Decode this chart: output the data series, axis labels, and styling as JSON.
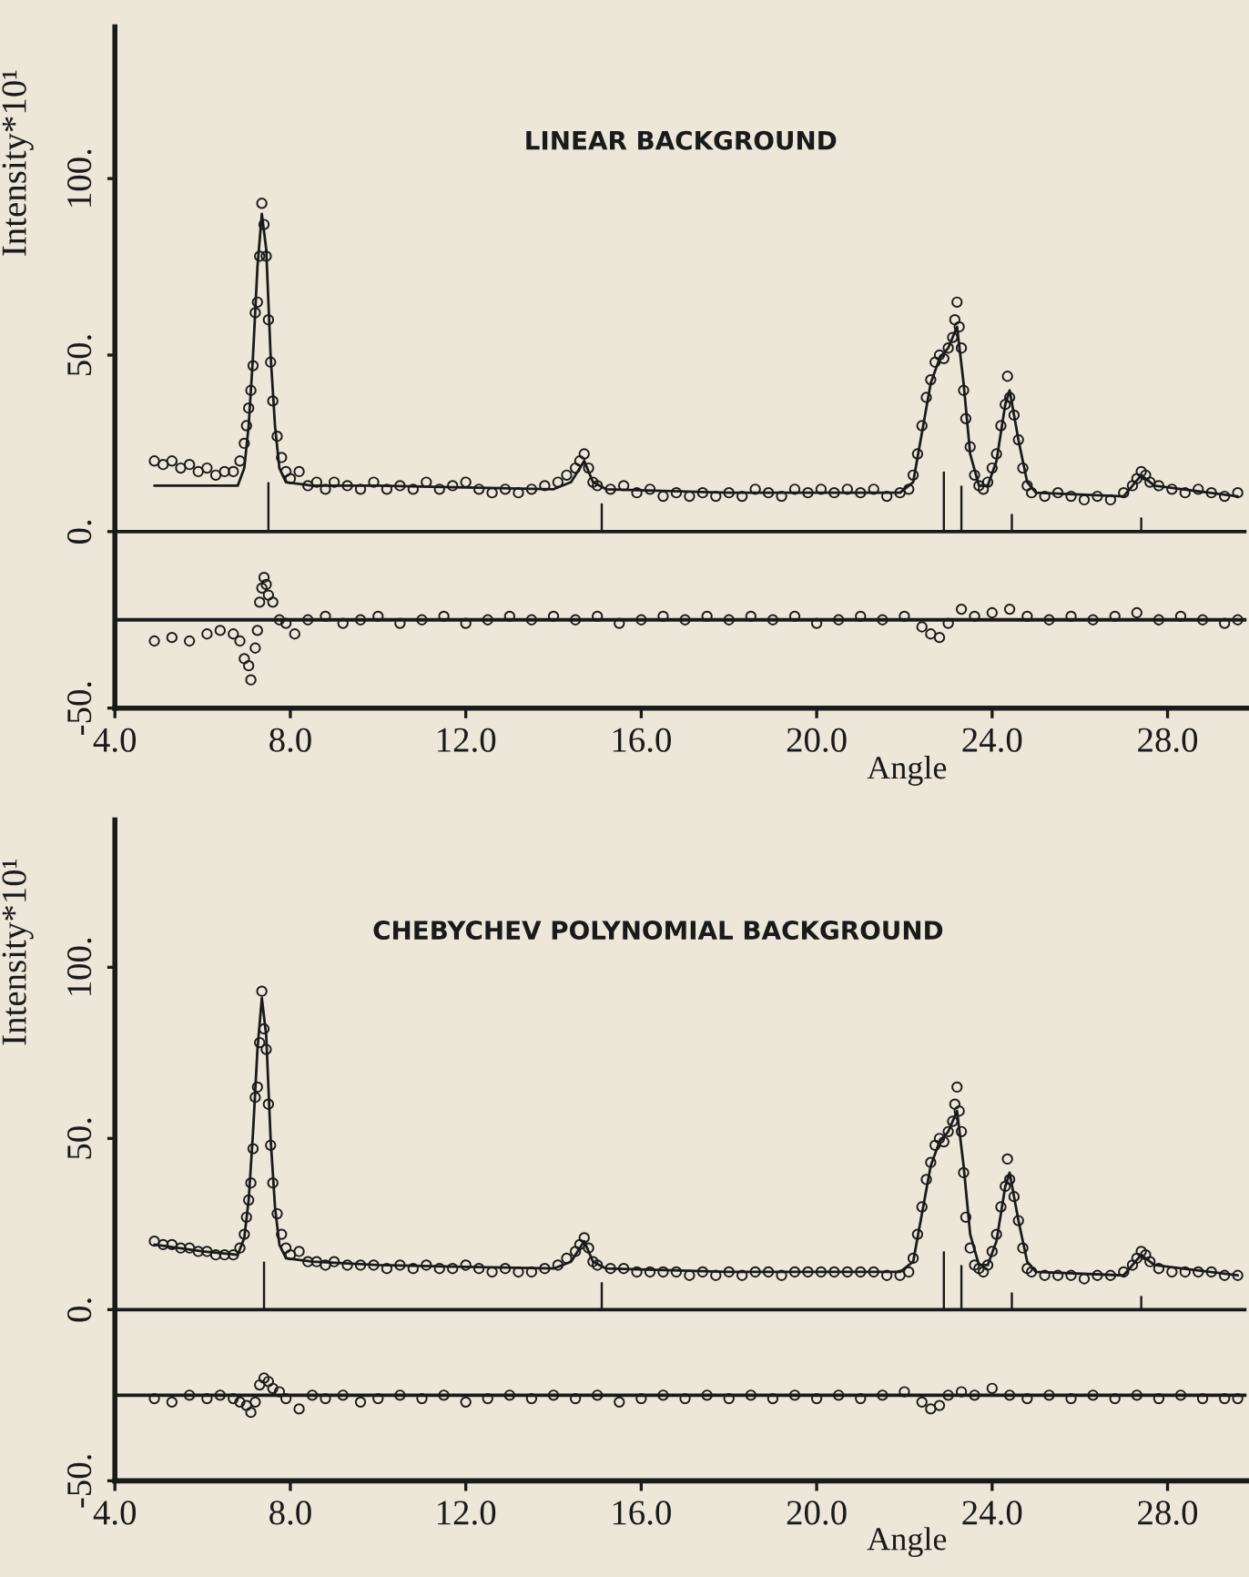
{
  "chart_data": [
    {
      "type": "scatter",
      "annotations": [
        "LINEAR BACKGROUND"
      ],
      "xlabel": "Angle",
      "ylabel": "Intensity*10¹",
      "xlim": [
        4.0,
        29.8
      ],
      "ylim": [
        -50,
        143
      ],
      "xticks": [
        {
          "value": 4,
          "label": "4.0"
        },
        {
          "value": 8,
          "label": "8.0"
        },
        {
          "value": 12,
          "label": "12.0"
        },
        {
          "value": 16,
          "label": "16.0"
        },
        {
          "value": 20,
          "label": "20.0"
        },
        {
          "value": 24,
          "label": "24.0"
        },
        {
          "value": 28,
          "label": "28.0"
        }
      ],
      "yticks": [
        {
          "value": -50,
          "label": "-50."
        },
        {
          "value": 0,
          "label": "0."
        },
        {
          "value": 50,
          "label": "50."
        },
        {
          "value": 100,
          "label": "100."
        }
      ],
      "ref_lines": [
        {
          "axis": "y",
          "value": 0,
          "label": null
        },
        {
          "axis": "y",
          "value": -25,
          "label": null
        }
      ],
      "series": [
        {
          "type": "scatter",
          "marker": "circle",
          "color": "#1a1a1a",
          "x": [
            4.9,
            5.1,
            5.3,
            5.5,
            5.7,
            5.9,
            6.1,
            6.3,
            6.5,
            6.7,
            6.85,
            6.95,
            7.0,
            7.05,
            7.1,
            7.15,
            7.2,
            7.25,
            7.3,
            7.35,
            7.4,
            7.45,
            7.5,
            7.55,
            7.6,
            7.7,
            7.8,
            7.9,
            8.0,
            8.2,
            8.4,
            8.6,
            8.8,
            9.0,
            9.3,
            9.6,
            9.9,
            10.2,
            10.5,
            10.8,
            11.1,
            11.4,
            11.7,
            12.0,
            12.3,
            12.6,
            12.9,
            13.2,
            13.5,
            13.8,
            14.1,
            14.3,
            14.5,
            14.6,
            14.7,
            14.8,
            14.9,
            15.0,
            15.3,
            15.6,
            15.9,
            16.2,
            16.5,
            16.8,
            17.1,
            17.4,
            17.7,
            18.0,
            18.3,
            18.6,
            18.9,
            19.2,
            19.5,
            19.8,
            20.1,
            20.4,
            20.7,
            21.0,
            21.3,
            21.6,
            21.9,
            22.1,
            22.2,
            22.3,
            22.4,
            22.5,
            22.6,
            22.7,
            22.8,
            22.9,
            23.0,
            23.1,
            23.15,
            23.2,
            23.25,
            23.3,
            23.35,
            23.4,
            23.5,
            23.6,
            23.7,
            23.8,
            23.9,
            24.0,
            24.1,
            24.2,
            24.3,
            24.35,
            24.4,
            24.5,
            24.6,
            24.7,
            24.8,
            24.9,
            25.2,
            25.5,
            25.8,
            26.1,
            26.4,
            26.7,
            27.0,
            27.2,
            27.3,
            27.4,
            27.5,
            27.6,
            27.8,
            28.1,
            28.4,
            28.7,
            29.0,
            29.3,
            29.6
          ],
          "values": [
            20,
            19,
            20,
            18,
            19,
            17,
            18,
            16,
            17,
            17,
            20,
            25,
            30,
            35,
            40,
            47,
            62,
            65,
            78,
            93,
            87,
            78,
            60,
            48,
            37,
            27,
            21,
            17,
            15,
            17,
            13,
            14,
            12,
            14,
            13,
            12,
            14,
            12,
            13,
            12,
            14,
            12,
            13,
            14,
            12,
            11,
            12,
            11,
            12,
            13,
            14,
            16,
            18,
            20,
            22,
            18,
            14,
            13,
            12,
            13,
            11,
            12,
            10,
            11,
            10,
            11,
            10,
            11,
            10,
            12,
            11,
            10,
            12,
            11,
            12,
            11,
            12,
            11,
            12,
            10,
            11,
            12,
            16,
            22,
            30,
            38,
            43,
            48,
            50,
            49,
            52,
            55,
            60,
            65,
            58,
            52,
            40,
            32,
            24,
            16,
            13,
            12,
            14,
            18,
            22,
            30,
            36,
            44,
            38,
            33,
            26,
            18,
            13,
            11,
            10,
            11,
            10,
            9,
            10,
            9,
            11,
            13,
            15,
            17,
            16,
            14,
            13,
            12,
            11,
            12,
            11,
            10,
            11
          ]
        },
        {
          "type": "line",
          "color": "#1a1a1a",
          "x": [
            4.9,
            6.8,
            6.95,
            7.05,
            7.15,
            7.25,
            7.35,
            7.45,
            7.55,
            7.65,
            7.75,
            7.9,
            8.5,
            10,
            12,
            14.0,
            14.4,
            14.7,
            14.9,
            15.2,
            18,
            21.9,
            22.2,
            22.4,
            22.6,
            22.8,
            23.0,
            23.2,
            23.35,
            23.5,
            23.7,
            23.9,
            24.1,
            24.3,
            24.4,
            24.6,
            24.8,
            25,
            27.0,
            27.4,
            27.7,
            29.6
          ],
          "values": [
            13,
            13,
            18,
            30,
            50,
            75,
            90,
            80,
            50,
            30,
            18,
            14,
            13,
            13,
            12.5,
            12,
            14,
            20,
            14,
            12,
            11,
            11,
            14,
            28,
            42,
            49,
            52,
            58,
            42,
            22,
            13,
            13,
            20,
            36,
            40,
            26,
            14,
            11,
            10,
            16,
            13,
            10
          ]
        },
        {
          "marker": "circle",
          "color": "#1a1a1a",
          "x": [
            4.9,
            5.3,
            5.7,
            6.1,
            6.4,
            6.7,
            6.85,
            6.95,
            7.05,
            7.1,
            7.2,
            7.25,
            7.3,
            7.35,
            7.4,
            7.45,
            7.5,
            7.6,
            7.75,
            7.9,
            8.1,
            8.4,
            8.8,
            9.2,
            9.6,
            10.0,
            10.5,
            11.0,
            11.5,
            12.0,
            12.5,
            13.0,
            13.5,
            14.0,
            14.5,
            15.0,
            15.5,
            16.0,
            16.5,
            17.0,
            17.5,
            18.0,
            18.5,
            19.0,
            19.5,
            20.0,
            20.5,
            21.0,
            21.5,
            22.0,
            22.4,
            22.6,
            22.8,
            23.0,
            23.3,
            23.6,
            24.0,
            24.4,
            24.8,
            25.3,
            25.8,
            26.3,
            26.8,
            27.3,
            27.8,
            28.3,
            28.8,
            29.3,
            29.6
          ],
          "values": [
            -31,
            -30,
            -31,
            -29,
            -28,
            -29,
            -31,
            -36,
            -38,
            -42,
            -33,
            -28,
            -20,
            -16,
            -13,
            -15,
            -18,
            -20,
            -25,
            -26,
            -29,
            -25,
            -24,
            -26,
            -25,
            -24,
            -26,
            -25,
            -24,
            -26,
            -25,
            -24,
            -25,
            -24,
            -25,
            -24,
            -26,
            -25,
            -24,
            -25,
            -24,
            -25,
            -24,
            -25,
            -24,
            -26,
            -25,
            -24,
            -25,
            -24,
            -27,
            -29,
            -30,
            -26,
            -22,
            -24,
            -23,
            -22,
            -24,
            -25,
            -24,
            -25,
            -24,
            -23,
            -25,
            -24,
            -25,
            -26,
            -25
          ]
        },
        {
          "type": "bar",
          "color": "#1a1a1a",
          "x": [
            7.5,
            15.1,
            22.9,
            23.3,
            24.45,
            27.4
          ],
          "values": [
            14,
            8,
            17,
            13,
            5,
            4
          ]
        }
      ]
    },
    {
      "type": "scatter",
      "annotations": [
        "CHEBYCHEV POLYNOMIAL BACKGROUND"
      ],
      "xlabel": "Angle",
      "ylabel": "Intensity*10¹",
      "xlim": [
        4.0,
        29.8
      ],
      "ylim": [
        -50,
        143
      ],
      "xticks": [
        {
          "value": 4,
          "label": "4.0"
        },
        {
          "value": 8,
          "label": "8.0"
        },
        {
          "value": 12,
          "label": "12.0"
        },
        {
          "value": 16,
          "label": "16.0"
        },
        {
          "value": 20,
          "label": "20.0"
        },
        {
          "value": 24,
          "label": "24.0"
        },
        {
          "value": 28,
          "label": "28.0"
        }
      ],
      "yticks": [
        {
          "value": -50,
          "label": "-50."
        },
        {
          "value": 0,
          "label": "0."
        },
        {
          "value": 50,
          "label": "50."
        },
        {
          "value": 100,
          "label": "100."
        }
      ],
      "ref_lines": [
        {
          "axis": "y",
          "value": 0,
          "label": null
        },
        {
          "axis": "y",
          "value": -25,
          "label": null
        }
      ],
      "series": [
        {
          "type": "scatter",
          "marker": "circle",
          "color": "#1a1a1a",
          "x": [
            4.9,
            5.1,
            5.3,
            5.5,
            5.7,
            5.9,
            6.1,
            6.3,
            6.5,
            6.7,
            6.85,
            6.95,
            7.0,
            7.05,
            7.1,
            7.15,
            7.2,
            7.25,
            7.3,
            7.35,
            7.4,
            7.45,
            7.5,
            7.55,
            7.6,
            7.7,
            7.8,
            7.9,
            8.0,
            8.2,
            8.4,
            8.6,
            8.8,
            9.0,
            9.3,
            9.6,
            9.9,
            10.2,
            10.5,
            10.8,
            11.1,
            11.4,
            11.7,
            12.0,
            12.3,
            12.6,
            12.9,
            13.2,
            13.5,
            13.8,
            14.1,
            14.3,
            14.5,
            14.6,
            14.7,
            14.8,
            14.9,
            15.0,
            15.3,
            15.6,
            15.9,
            16.2,
            16.5,
            16.8,
            17.1,
            17.4,
            17.7,
            18.0,
            18.3,
            18.6,
            18.9,
            19.2,
            19.5,
            19.8,
            20.1,
            20.4,
            20.7,
            21.0,
            21.3,
            21.6,
            21.9,
            22.1,
            22.2,
            22.3,
            22.4,
            22.5,
            22.6,
            22.7,
            22.8,
            22.9,
            23.0,
            23.1,
            23.15,
            23.2,
            23.25,
            23.3,
            23.35,
            23.4,
            23.5,
            23.6,
            23.7,
            23.8,
            23.9,
            24.0,
            24.1,
            24.2,
            24.3,
            24.35,
            24.4,
            24.5,
            24.6,
            24.7,
            24.8,
            24.9,
            25.2,
            25.5,
            25.8,
            26.1,
            26.4,
            26.7,
            27.0,
            27.2,
            27.3,
            27.4,
            27.5,
            27.6,
            27.8,
            28.1,
            28.4,
            28.7,
            29.0,
            29.3,
            29.6
          ],
          "values": [
            20,
            19,
            19,
            18,
            18,
            17,
            17,
            16,
            16,
            16,
            18,
            22,
            27,
            32,
            37,
            47,
            62,
            65,
            78,
            93,
            82,
            76,
            60,
            48,
            37,
            28,
            22,
            18,
            16,
            17,
            14,
            14,
            13,
            14,
            13,
            13,
            13,
            12,
            13,
            12,
            13,
            12,
            12,
            13,
            12,
            11,
            12,
            11,
            11,
            12,
            13,
            15,
            17,
            19,
            21,
            18,
            14,
            13,
            12,
            12,
            11,
            11,
            11,
            11,
            10,
            11,
            10,
            11,
            10,
            11,
            11,
            10,
            11,
            11,
            11,
            11,
            11,
            11,
            11,
            10,
            10,
            11,
            15,
            22,
            30,
            38,
            43,
            48,
            50,
            49,
            52,
            55,
            60,
            65,
            58,
            52,
            40,
            27,
            18,
            13,
            12,
            11,
            13,
            17,
            22,
            30,
            36,
            44,
            38,
            33,
            26,
            18,
            12,
            11,
            10,
            10,
            10,
            9,
            10,
            10,
            11,
            13,
            15,
            17,
            16,
            14,
            12,
            11,
            11,
            11,
            11,
            10,
            10
          ]
        },
        {
          "type": "line",
          "color": "#1a1a1a",
          "x": [
            4.9,
            6.0,
            6.8,
            6.95,
            7.05,
            7.15,
            7.25,
            7.35,
            7.45,
            7.55,
            7.65,
            7.75,
            7.9,
            8.5,
            10,
            12,
            14.0,
            14.4,
            14.7,
            14.9,
            15.2,
            18,
            21.9,
            22.2,
            22.4,
            22.6,
            22.8,
            23.0,
            23.2,
            23.35,
            23.5,
            23.7,
            23.9,
            24.1,
            24.3,
            24.4,
            24.6,
            24.8,
            25,
            27.0,
            27.4,
            27.7,
            29.6
          ],
          "values": [
            19,
            17,
            16,
            21,
            32,
            52,
            76,
            91,
            80,
            50,
            30,
            19,
            15,
            14,
            13,
            12.5,
            12,
            14,
            20,
            14,
            12,
            11,
            11,
            14,
            28,
            42,
            49,
            52,
            58,
            42,
            22,
            13,
            13,
            20,
            36,
            40,
            26,
            14,
            11,
            10,
            16,
            13,
            10
          ]
        },
        {
          "marker": "circle",
          "color": "#1a1a1a",
          "x": [
            4.9,
            5.3,
            5.7,
            6.1,
            6.4,
            6.7,
            6.85,
            7.0,
            7.1,
            7.2,
            7.3,
            7.4,
            7.5,
            7.6,
            7.75,
            7.9,
            8.2,
            8.5,
            8.8,
            9.2,
            9.6,
            10.0,
            10.5,
            11.0,
            11.5,
            12.0,
            12.5,
            13.0,
            13.5,
            14.0,
            14.5,
            15.0,
            15.5,
            16.0,
            16.5,
            17.0,
            17.5,
            18.0,
            18.5,
            19.0,
            19.5,
            20.0,
            20.5,
            21.0,
            21.5,
            22.0,
            22.4,
            22.6,
            22.8,
            23.0,
            23.3,
            23.6,
            24.0,
            24.4,
            24.8,
            25.3,
            25.8,
            26.3,
            26.8,
            27.3,
            27.8,
            28.3,
            28.8,
            29.3,
            29.6
          ],
          "values": [
            -26,
            -27,
            -25,
            -26,
            -25,
            -26,
            -27,
            -28,
            -30,
            -27,
            -22,
            -20,
            -21,
            -23,
            -24,
            -26,
            -29,
            -25,
            -26,
            -25,
            -27,
            -26,
            -25,
            -26,
            -25,
            -27,
            -26,
            -25,
            -26,
            -25,
            -26,
            -25,
            -27,
            -26,
            -25,
            -26,
            -25,
            -26,
            -25,
            -26,
            -25,
            -26,
            -25,
            -26,
            -25,
            -24,
            -27,
            -29,
            -28,
            -25,
            -24,
            -25,
            -23,
            -25,
            -26,
            -25,
            -26,
            -25,
            -26,
            -25,
            -26,
            -25,
            -26,
            -26,
            -26
          ]
        },
        {
          "type": "bar",
          "color": "#1a1a1a",
          "x": [
            7.4,
            15.1,
            22.9,
            23.3,
            24.45,
            27.4
          ],
          "values": [
            14,
            8,
            17,
            13,
            5,
            4
          ]
        }
      ]
    }
  ]
}
